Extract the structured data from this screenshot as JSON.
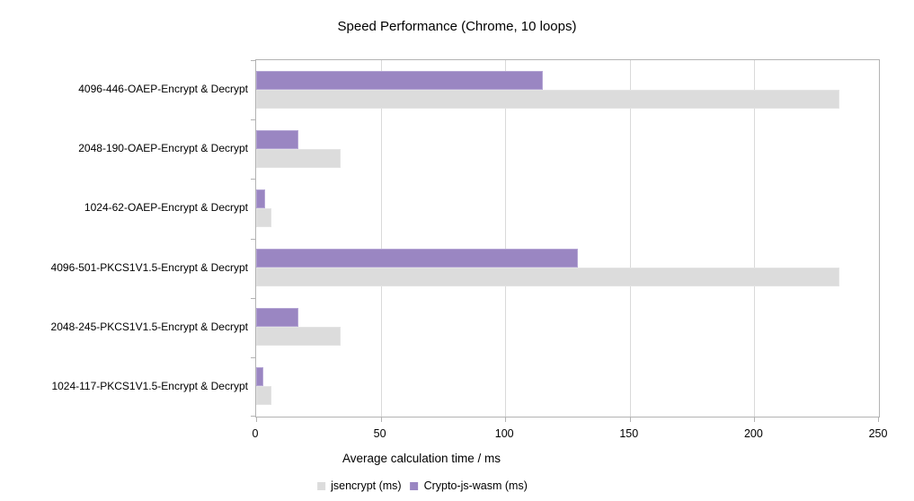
{
  "title": "Speed Performance (Chrome, 10 loops)",
  "x_axis_title": "Average calculation time / ms",
  "colors": {
    "jsencrypt_bar": "#dcdcdc",
    "crypto_js_wasm_bar": "#9a86c2",
    "plot_border": "#b3b3b3",
    "gridline": "#d9d9d9"
  },
  "chart_data": {
    "type": "bar",
    "orientation": "horizontal",
    "title": "Speed Performance (Chrome, 10 loops)",
    "xlabel": "Average calculation time / ms",
    "ylabel": "",
    "xlim": [
      0,
      250
    ],
    "xticks": [
      0,
      50,
      100,
      150,
      200,
      250
    ],
    "grid": true,
    "legend_position": "bottom",
    "categories": [
      "4096-446-OAEP-Encrypt & Decrypt",
      "2048-190-OAEP-Encrypt & Decrypt",
      "1024-62-OAEP-Encrypt & Decrypt",
      "4096-501-PKCS1V1.5-Encrypt & Decrypt",
      "2048-245-PKCS1V1.5-Encrypt & Decrypt",
      "1024-117-PKCS1V1.5-Encrypt & Decrypt"
    ],
    "series": [
      {
        "name": "jsencrypt (ms)",
        "color": "#dcdcdc",
        "values": [
          234,
          34,
          6,
          234,
          34,
          6
        ]
      },
      {
        "name": "Crypto-js-wasm (ms)",
        "color": "#9a86c2",
        "values": [
          115,
          17,
          3.5,
          129,
          17,
          3
        ]
      }
    ]
  }
}
